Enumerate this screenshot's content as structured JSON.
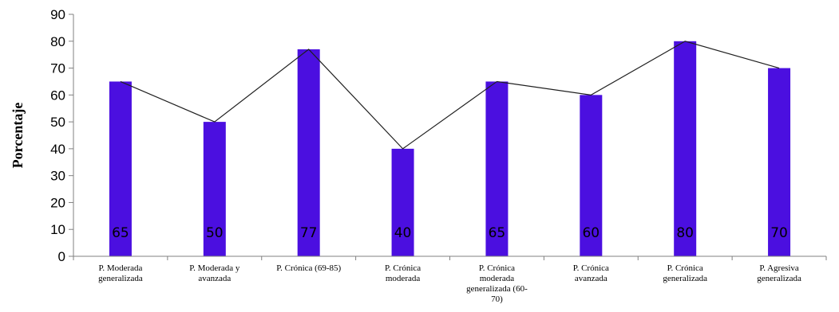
{
  "chart_data": {
    "type": "bar",
    "title": "",
    "xlabel": "",
    "ylabel": "Porcentaje",
    "ylim": [
      0,
      90
    ],
    "yticks": [
      0,
      10,
      20,
      30,
      40,
      50,
      60,
      70,
      80,
      90
    ],
    "categories": [
      [
        "P. Moderada",
        "generalizada"
      ],
      [
        "P. Moderada y",
        "avanzada"
      ],
      [
        "P. Crónica  (69-85)"
      ],
      [
        "P. Crónica",
        "moderada"
      ],
      [
        "P. Crónica",
        "moderada",
        "generalizada (60-",
        "70)"
      ],
      [
        "P. Crónica",
        "avanzada"
      ],
      [
        "P. Crónica",
        "generalizada"
      ],
      [
        "P.  Agresiva",
        "generalizada"
      ]
    ],
    "values": [
      65,
      50,
      77,
      40,
      65,
      60,
      80,
      70
    ],
    "data_labels": [
      "65",
      "50",
      "77",
      "40",
      "65",
      "60",
      "80",
      "70"
    ],
    "overlay_line": true,
    "grid": false,
    "legend": "none",
    "colors": {
      "bar": "#4B0FE0",
      "line": "#1f1f1f",
      "axis": "#808080"
    }
  }
}
